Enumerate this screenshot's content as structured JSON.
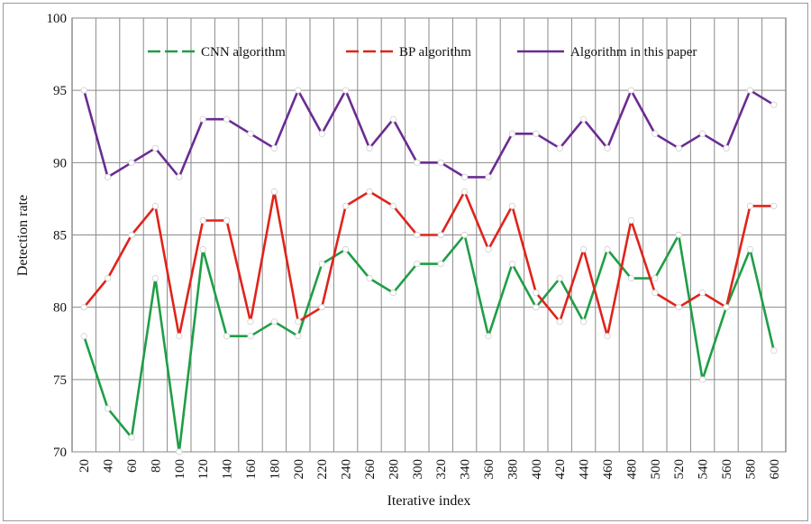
{
  "chart_data": {
    "type": "line",
    "title": "",
    "xlabel": "Iterative index",
    "ylabel": "Detection rate",
    "ylim": [
      70,
      100
    ],
    "yticks": [
      70,
      75,
      80,
      85,
      90,
      95,
      100
    ],
    "grid": true,
    "legend_position": "top",
    "categories": [
      "20",
      "40",
      "60",
      "80",
      "100",
      "120",
      "140",
      "160",
      "180",
      "200",
      "220",
      "240",
      "260",
      "280",
      "300",
      "320",
      "340",
      "360",
      "380",
      "400",
      "420",
      "440",
      "460",
      "480",
      "500",
      "520",
      "540",
      "560",
      "580",
      "600"
    ],
    "series": [
      {
        "name": "CNN algorithm",
        "color": "#1f9e46",
        "values": [
          78,
          73,
          71,
          82,
          70,
          84,
          78,
          78,
          79,
          78,
          83,
          84,
          82,
          81,
          83,
          83,
          85,
          78,
          83,
          80,
          82,
          79,
          84,
          82,
          82,
          85,
          75,
          80,
          84,
          77
        ]
      },
      {
        "name": "BP algorithm",
        "color": "#e0231b",
        "values": [
          80,
          82,
          85,
          87,
          78,
          86,
          86,
          79,
          88,
          79,
          80,
          87,
          88,
          87,
          85,
          85,
          88,
          84,
          87,
          81,
          79,
          84,
          78,
          86,
          81,
          80,
          81,
          80,
          87,
          87
        ]
      },
      {
        "name": "Algorithm in this paper",
        "color": "#6a2c91",
        "values": [
          95,
          89,
          90,
          91,
          89,
          93,
          93,
          92,
          91,
          95,
          92,
          95,
          91,
          93,
          90,
          90,
          89,
          89,
          92,
          92,
          91,
          93,
          91,
          95,
          92,
          91,
          92,
          91,
          95,
          94
        ]
      }
    ]
  }
}
